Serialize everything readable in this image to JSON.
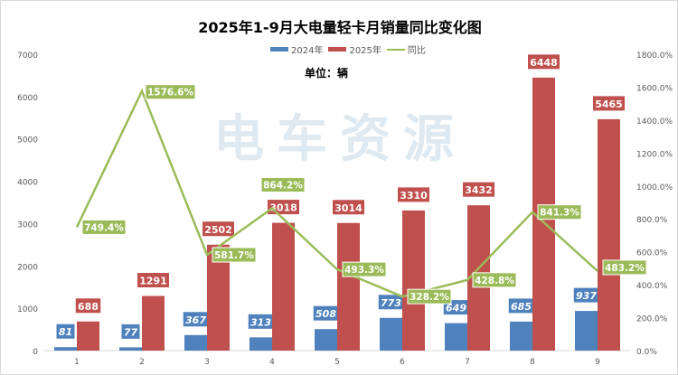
{
  "chart_data": {
    "type": "bar",
    "title": "2025年1-9月大电量轻卡月销量同比变化图",
    "unit_label": "单位：辆",
    "watermark": "电车资源",
    "categories": [
      "1",
      "2",
      "3",
      "4",
      "5",
      "6",
      "7",
      "8",
      "9"
    ],
    "series": [
      {
        "name": "2024年",
        "type": "bar",
        "axis": "left",
        "color": "#4f81bd",
        "values": [
          81,
          77,
          367,
          313,
          508,
          773,
          649,
          685,
          937
        ]
      },
      {
        "name": "2025年",
        "type": "bar",
        "axis": "left",
        "color": "#c0504d",
        "values": [
          688,
          1291,
          2502,
          3018,
          3014,
          3310,
          3432,
          6448,
          5465
        ]
      },
      {
        "name": "同比",
        "type": "line",
        "axis": "right",
        "color": "#9bbb59",
        "values": [
          749.4,
          1576.6,
          581.7,
          864.2,
          493.3,
          328.2,
          428.8,
          841.3,
          483.2
        ],
        "labels": [
          "749.4%",
          "1576.6%",
          "581.7%",
          "864.2%",
          "493.3%",
          "328.2%",
          "428.8%",
          "841.3%",
          "483.2%"
        ]
      }
    ],
    "left_axis": {
      "ylim": [
        0,
        7000
      ],
      "ticks": [
        "0",
        "1000",
        "2000",
        "3000",
        "4000",
        "5000",
        "6000",
        "7000"
      ]
    },
    "right_axis": {
      "ylim": [
        0,
        1800
      ],
      "ticks": [
        "0.0%",
        "200.0%",
        "400.0%",
        "600.0%",
        "800.0%",
        "1000.0%",
        "1200.0%",
        "1400.0%",
        "1600.0%",
        "1800.0%"
      ]
    },
    "legend": "top-center",
    "grid": false
  }
}
